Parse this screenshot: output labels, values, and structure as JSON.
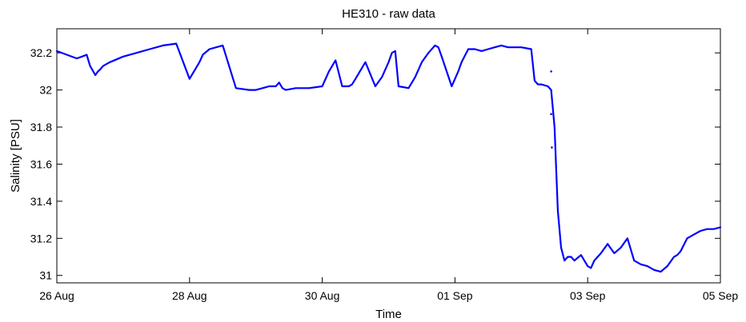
{
  "chart_data": {
    "type": "line",
    "title": "HE310 - raw data",
    "xlabel": "Time",
    "ylabel": "Salinity [PSU]",
    "x_unit": "days after 26 Aug",
    "xlim": [
      0,
      10
    ],
    "ylim": [
      30.96,
      32.33
    ],
    "x_ticks": [
      0,
      2,
      4,
      6,
      8,
      10
    ],
    "x_tick_labels": [
      "26 Aug",
      "28 Aug",
      "30 Aug",
      "01 Sep",
      "03 Sep",
      "05 Sep"
    ],
    "y_ticks": [
      31,
      31.2,
      31.4,
      31.6,
      31.8,
      32,
      32.2
    ],
    "y_tick_labels": [
      "31",
      "31.2",
      "31.4",
      "31.6",
      "31.8",
      "32",
      "32.2"
    ],
    "grid": false,
    "legend": "none",
    "series": [
      {
        "color": "#0000ff",
        "x": [
          0.0,
          0.15,
          0.3,
          0.38,
          0.45,
          0.5,
          0.58,
          0.62,
          0.65,
          0.7,
          0.8,
          1.0,
          1.2,
          1.4,
          1.6,
          1.8,
          2.0,
          2.1,
          2.15,
          2.2,
          2.3,
          2.5,
          2.7,
          2.9,
          3.0,
          3.1,
          3.2,
          3.3,
          3.35,
          3.4,
          3.45,
          3.6,
          3.8,
          4.0,
          4.1,
          4.2,
          4.3,
          4.4,
          4.45,
          4.5,
          4.65,
          4.8,
          4.9,
          5.0,
          5.05,
          5.1,
          5.15,
          5.3,
          5.4,
          5.5,
          5.6,
          5.7,
          5.75,
          5.8,
          5.95,
          6.05,
          6.1,
          6.2,
          6.3,
          6.4,
          6.5,
          6.6,
          6.7,
          6.8,
          7.0,
          7.15,
          7.2,
          7.25,
          7.3,
          7.4,
          7.45,
          7.5,
          7.55,
          7.6,
          7.65,
          7.7,
          7.75,
          7.8,
          7.9,
          8.0,
          8.05,
          8.1,
          8.2,
          8.3,
          8.4,
          8.5,
          8.6,
          8.7,
          8.8,
          8.9,
          9.0,
          9.1,
          9.2,
          9.3,
          9.35,
          9.4,
          9.5,
          9.6,
          9.7,
          9.8,
          9.9,
          10.0
        ],
        "y": [
          32.21,
          32.19,
          32.17,
          32.18,
          32.19,
          32.13,
          32.08,
          32.1,
          32.11,
          32.13,
          32.15,
          32.18,
          32.2,
          32.22,
          32.24,
          32.25,
          32.06,
          32.12,
          32.15,
          32.19,
          32.22,
          32.24,
          32.01,
          32.0,
          32.0,
          32.01,
          32.02,
          32.02,
          32.04,
          32.01,
          32.0,
          32.01,
          32.01,
          32.02,
          32.1,
          32.16,
          32.02,
          32.02,
          32.03,
          32.06,
          32.15,
          32.02,
          32.07,
          32.15,
          32.2,
          32.21,
          32.02,
          32.01,
          32.07,
          32.15,
          32.2,
          32.24,
          32.23,
          32.18,
          32.02,
          32.1,
          32.15,
          32.22,
          32.22,
          32.21,
          32.22,
          32.23,
          32.24,
          32.23,
          32.23,
          32.22,
          32.05,
          32.03,
          32.03,
          32.02,
          32.0,
          31.8,
          31.35,
          31.15,
          31.08,
          31.1,
          31.1,
          31.08,
          31.11,
          31.05,
          31.04,
          31.08,
          31.12,
          31.17,
          31.12,
          31.15,
          31.2,
          31.08,
          31.06,
          31.05,
          31.03,
          31.02,
          31.05,
          31.1,
          31.11,
          31.13,
          31.2,
          31.22,
          31.24,
          31.25,
          31.25,
          31.26
        ]
      }
    ],
    "scatter_points": {
      "x": [
        7.45,
        7.45,
        7.46
      ],
      "y": [
        32.1,
        31.87,
        31.69
      ]
    }
  }
}
